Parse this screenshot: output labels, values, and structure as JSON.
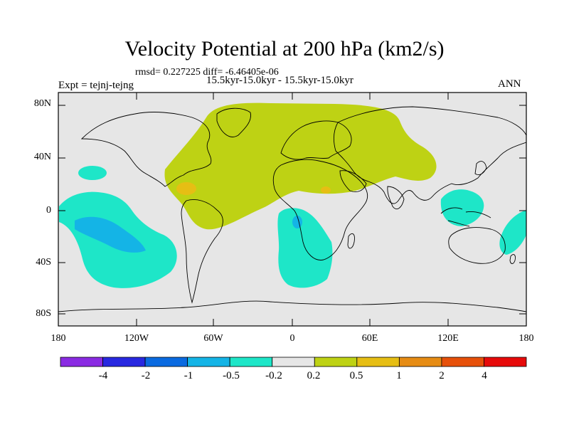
{
  "title": "Velocity Potential at 200 hPa (km2/s)",
  "stats_line": "rmsd= 0.227225 diff= -6.46405e-06",
  "case_line": "15.5kyr-15.0kyr - 15.5kyr-15.0kyr",
  "expt_line": "Expt = tejnj-tejng",
  "season": "ANN",
  "map": {
    "y_labels": [
      "80N",
      "40N",
      "0",
      "40S",
      "80S"
    ],
    "x_labels": [
      "180",
      "120W",
      "60W",
      "0",
      "60E",
      "120E",
      "180"
    ],
    "background_color": "#e6e6e6"
  },
  "colorbar": {
    "labels": [
      "-4",
      "-2",
      "-1",
      "-0.5",
      "-0.2",
      "0.2",
      "0.5",
      "1",
      "2",
      "4"
    ],
    "colors": [
      "#8a2be2",
      "#2828e0",
      "#0a6ae0",
      "#14b4e6",
      "#1ee6c8",
      "#e6e6e6",
      "#bed214",
      "#e6be14",
      "#e68c14",
      "#e6500a",
      "#e60a0a"
    ]
  }
}
